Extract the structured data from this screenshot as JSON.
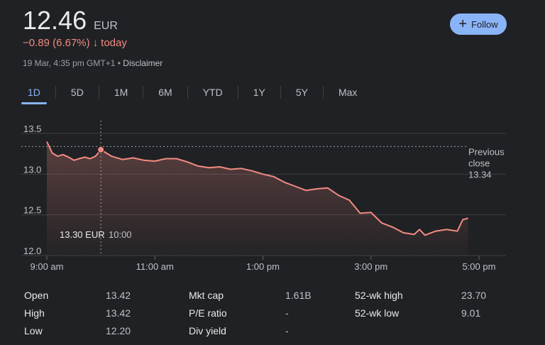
{
  "header": {
    "price": "12.46",
    "currency": "EUR",
    "change": "−0.89 (6.67%)",
    "change_arrow": "↓",
    "change_period": "today",
    "timestamp": "19 Mar, 4:35 pm GMT+1",
    "separator": "•",
    "disclaimer": "Disclaimer"
  },
  "follow_button": {
    "icon": "plus-icon",
    "label": "Follow"
  },
  "tabs": [
    "1D",
    "5D",
    "1M",
    "6M",
    "YTD",
    "1Y",
    "5Y",
    "Max"
  ],
  "active_tab": "1D",
  "colors": {
    "negative": "#f28b82",
    "accent": "#8ab4f8",
    "background": "#202124"
  },
  "chart_data": {
    "type": "line",
    "y_ticks": [
      "13.5",
      "13.0",
      "12.5",
      "12.0"
    ],
    "x_ticks": [
      "9:00 am",
      "11:00 am",
      "1:00 pm",
      "3:00 pm",
      "5:00 pm"
    ],
    "ylim": [
      12.0,
      13.5
    ],
    "xlim_hours": [
      9.0,
      17.5
    ],
    "previous_close": {
      "label_line1": "Previous",
      "label_line2": "close",
      "value": 13.34,
      "value_label": "13.34"
    },
    "hover": {
      "x": 10.0,
      "y": 13.3,
      "price_label": "13.30 EUR",
      "time_label": "10:00"
    },
    "series": [
      {
        "x": [
          9.0,
          9.1,
          9.2,
          9.3,
          9.4,
          9.5,
          9.6,
          9.7,
          9.8,
          9.9,
          10.0,
          10.2,
          10.4,
          10.6,
          10.8,
          11.0,
          11.2,
          11.4,
          11.6,
          11.8,
          12.0,
          12.2,
          12.4,
          12.6,
          12.8,
          13.0,
          13.2,
          13.4,
          13.6,
          13.8,
          14.0,
          14.2,
          14.4,
          14.6,
          14.8,
          15.0,
          15.2,
          15.4,
          15.6,
          15.8,
          15.9,
          16.0,
          16.2,
          16.4,
          16.6,
          16.7,
          16.8
        ],
        "y": [
          13.4,
          13.26,
          13.22,
          13.24,
          13.21,
          13.17,
          13.19,
          13.21,
          13.19,
          13.22,
          13.3,
          13.22,
          13.18,
          13.2,
          13.17,
          13.16,
          13.19,
          13.19,
          13.15,
          13.1,
          13.08,
          13.09,
          13.06,
          13.07,
          13.04,
          13.0,
          12.97,
          12.9,
          12.85,
          12.8,
          12.82,
          12.83,
          12.74,
          12.68,
          12.52,
          12.53,
          12.4,
          12.35,
          12.28,
          12.26,
          12.32,
          12.25,
          12.3,
          12.32,
          12.3,
          12.44,
          12.46
        ]
      }
    ]
  },
  "stats": [
    {
      "label": "Open",
      "value": "13.42"
    },
    {
      "label": "High",
      "value": "13.42"
    },
    {
      "label": "Low",
      "value": "12.20"
    },
    {
      "label": "Mkt cap",
      "value": "1.61B"
    },
    {
      "label": "P/E ratio",
      "value": "-"
    },
    {
      "label": "Div yield",
      "value": "-"
    },
    {
      "label": "52-wk high",
      "value": "23.70"
    },
    {
      "label": "52-wk low",
      "value": "9.01"
    }
  ]
}
